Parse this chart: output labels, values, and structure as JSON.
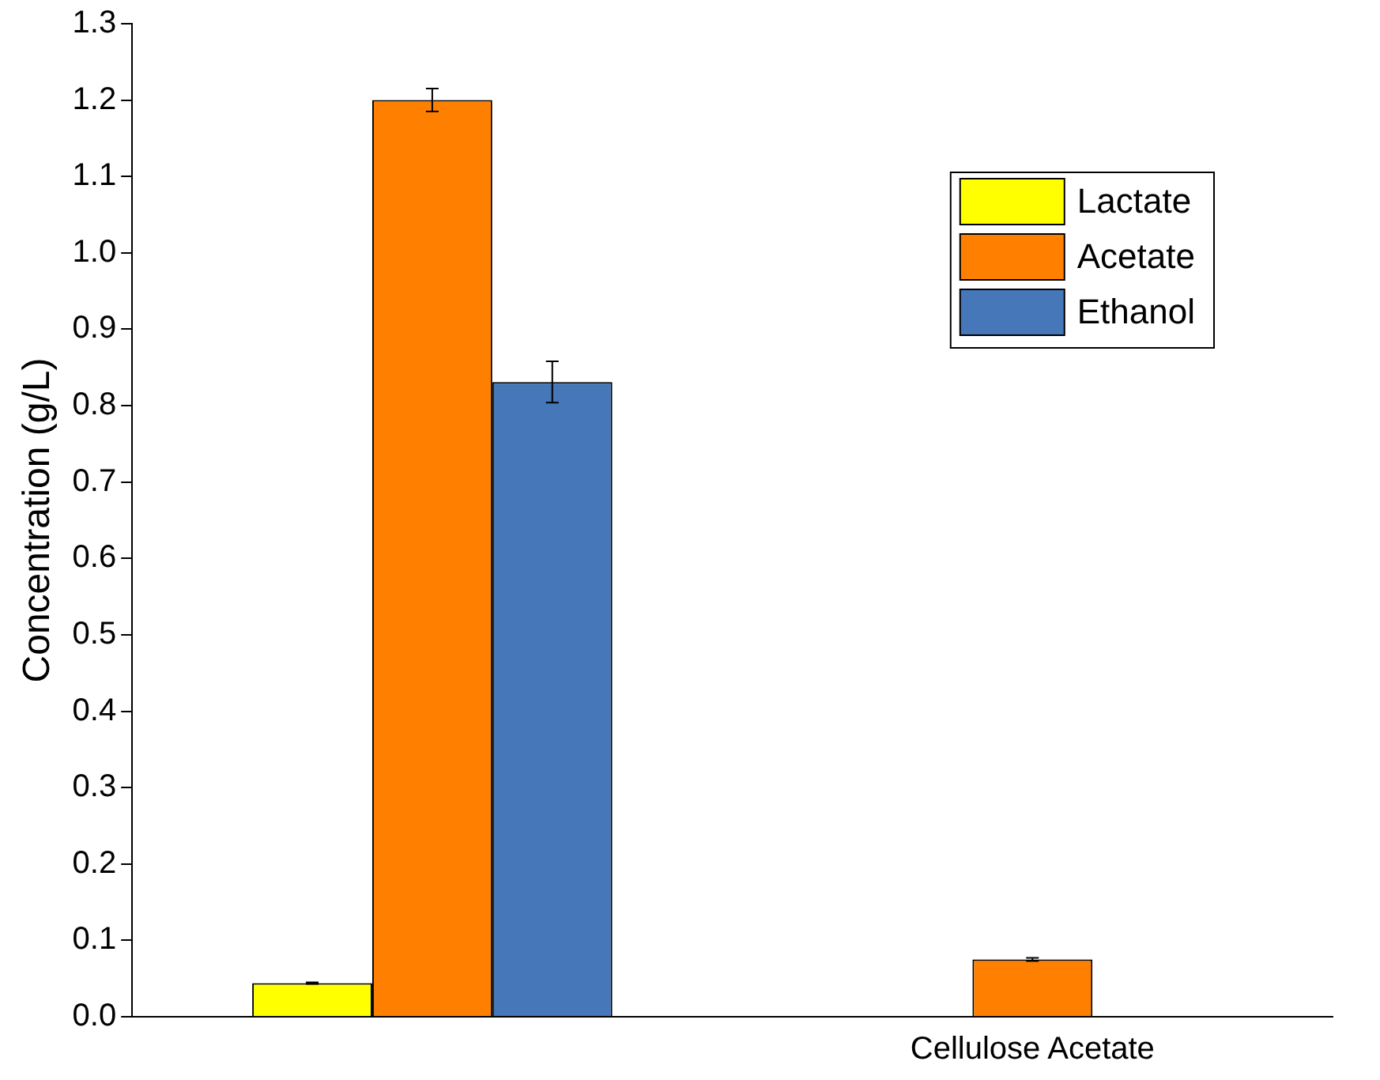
{
  "chart_data": {
    "type": "bar",
    "ylabel": "Concentration (g/L)",
    "categories": [
      null,
      "Cellulose Acetate"
    ],
    "series": [
      {
        "name": "Lactate",
        "color": "#ffff00",
        "values": [
          0.044,
          null
        ],
        "errors": [
          0.001,
          null
        ]
      },
      {
        "name": "Acetate",
        "color": "#ff8000",
        "values": [
          1.2,
          0.075
        ],
        "errors": [
          0.015,
          0.002
        ]
      },
      {
        "name": "Ethanol",
        "color": "#4677b8",
        "values": [
          0.831,
          null
        ],
        "errors": [
          0.027,
          null
        ]
      }
    ],
    "ylim": [
      0,
      1.3
    ],
    "yticks": [
      {
        "value": 0,
        "label": "0.0"
      },
      0.1,
      0.2,
      0.3,
      0.4,
      0.5,
      0.6,
      0.7,
      0.8,
      0.9,
      {
        "value": 1,
        "label": "1.0"
      },
      1.1,
      1.2,
      1.3
    ],
    "grid": false,
    "legend": "top right"
  }
}
